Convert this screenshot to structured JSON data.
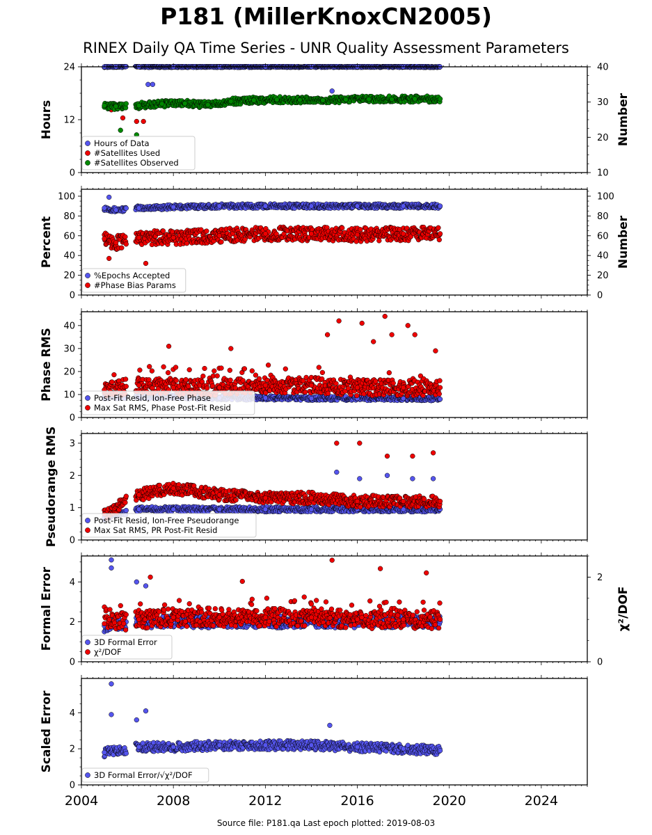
{
  "title": "P181 (MillerKnoxCN2005)",
  "subtitle": "RINEX Daily QA Time Series - UNR Quality Assessment Parameters",
  "footer": "Source file: P181.qa Last epoch plotted: 2019-08-03",
  "colors": {
    "blue": "#5555ee",
    "red": "#ee0000",
    "green": "#008800",
    "edge": "#000000"
  },
  "chart_data": [
    {
      "type": "scatter",
      "ylabel": "Hours",
      "ylabel_right": "Number",
      "xlim": [
        2004,
        2026
      ],
      "ylim": [
        0,
        24
      ],
      "ylim_right": [
        10,
        40
      ],
      "yticks": [
        0,
        12,
        24
      ],
      "yticks_right": [
        10,
        20,
        30,
        40
      ],
      "legend_position": "lower-left",
      "series": [
        {
          "name": "Hours of Data",
          "color": "blue",
          "axis": "left",
          "x": [
            2005.0,
            2005.5,
            2006.5,
            2008.0,
            2010.0,
            2012.0,
            2014.0,
            2016.0,
            2018.0,
            2019.6
          ],
          "y": [
            24,
            24,
            24,
            24,
            24,
            24,
            24,
            24,
            24,
            24
          ],
          "outliers": {
            "x": [
              2006.9,
              2007.1,
              2014.9
            ],
            "y": [
              20,
              20,
              18.5
            ]
          }
        },
        {
          "name": "#Satellites Used",
          "color": "red",
          "axis": "right",
          "x": [
            2005.3,
            2005.8,
            2006.4,
            2006.7,
            2009.5
          ],
          "y": [
            27.8,
            25.5,
            24.5,
            24.5,
            30
          ]
        },
        {
          "name": "#Satellites Observed",
          "color": "green",
          "axis": "right",
          "x": [
            2005.0,
            2005.5,
            2006.5,
            2007.5,
            2008.5,
            2009.5,
            2010.5,
            2011.5,
            2012.5,
            2013.5,
            2014.5,
            2015.5,
            2016.5,
            2017.5,
            2018.5,
            2019.6
          ],
          "y": [
            29,
            28.8,
            29,
            29.5,
            29.6,
            29.2,
            30.2,
            30.5,
            30.7,
            30.6,
            30.5,
            30.7,
            30.8,
            30.8,
            30.9,
            30.9
          ],
          "outliers": {
            "x": [
              2005.7,
              2006.4
            ],
            "y": [
              22,
              20.7
            ]
          }
        }
      ]
    },
    {
      "type": "scatter",
      "ylabel": "Percent",
      "ylabel_right": "Number",
      "xlim": [
        2004,
        2026
      ],
      "ylim": [
        0,
        107
      ],
      "ylim_right": [
        0,
        107
      ],
      "yticks": [
        0,
        20,
        40,
        60,
        80,
        100
      ],
      "yticks_right": [
        0,
        20,
        40,
        60,
        80,
        100
      ],
      "legend_position": "lower-left",
      "series": [
        {
          "name": "%Epochs Accepted",
          "color": "blue",
          "axis": "left",
          "x": [
            2005.0,
            2005.5,
            2006.5,
            2008.0,
            2010.0,
            2012.0,
            2014.0,
            2016.0,
            2018.0,
            2019.6
          ],
          "y": [
            88,
            86,
            88,
            89,
            90,
            90,
            90,
            90,
            90,
            90
          ],
          "outliers": {
            "x": [
              2005.2
            ],
            "y": [
              99
            ]
          }
        },
        {
          "name": "#Phase Bias Params",
          "color": "red",
          "axis": "right",
          "x": [
            2005.0,
            2005.5,
            2006.5,
            2008.0,
            2010.0,
            2012.0,
            2014.0,
            2016.0,
            2018.0,
            2019.6
          ],
          "y": [
            57,
            53,
            58,
            58,
            60,
            62,
            62,
            61,
            62,
            62
          ],
          "outliers": {
            "x": [
              2005.2,
              2006.8
            ],
            "y": [
              37,
              32
            ]
          }
        }
      ]
    },
    {
      "type": "scatter",
      "ylabel": "Phase RMS",
      "xlim": [
        2004,
        2026
      ],
      "ylim": [
        0,
        46
      ],
      "yticks": [
        0,
        10,
        20,
        30,
        40
      ],
      "legend_position": "lower-left",
      "series": [
        {
          "name": "Post-Fit Resid, Ion-Free Phase",
          "color": "blue",
          "x": [
            2005.0,
            2006.5,
            2008.0,
            2010.0,
            2012.0,
            2014.0,
            2016.0,
            2018.0,
            2019.6
          ],
          "y": [
            9,
            9,
            9,
            8.5,
            8.5,
            8.3,
            8.3,
            8.3,
            8.0
          ]
        },
        {
          "name": "Max Sat RMS, Phase Post-Fit Resid",
          "color": "red",
          "x": [
            2005.0,
            2006.5,
            2008.0,
            2010.0,
            2012.0,
            2014.0,
            2016.0,
            2018.0,
            2019.6
          ],
          "y": [
            12,
            14,
            13,
            13,
            14,
            14,
            13,
            13,
            13
          ],
          "outliers": {
            "x": [
              2015.2,
              2016.2,
              2017.2,
              2018.2,
              2018.5,
              2014.7,
              2016.7,
              2017.5,
              2019.4,
              2007.8,
              2010.5
            ],
            "y": [
              42,
              41,
              44,
              40,
              36,
              36,
              33,
              36,
              29,
              31,
              30
            ]
          }
        }
      ]
    },
    {
      "type": "scatter",
      "ylabel": "Pseudorange RMS",
      "xlim": [
        2004,
        2026
      ],
      "ylim": [
        0,
        3.3
      ],
      "yticks": [
        0,
        1,
        2,
        3
      ],
      "legend_position": "lower-left",
      "series": [
        {
          "name": "Post-Fit Resid, Ion-Free Pseudorange",
          "color": "blue",
          "x": [
            2005.0,
            2006.5,
            2008.0,
            2010.0,
            2012.0,
            2014.0,
            2016.0,
            2018.0,
            2019.6
          ],
          "y": [
            0.7,
            0.95,
            0.95,
            0.95,
            0.95,
            0.95,
            0.95,
            0.95,
            0.95
          ],
          "outliers": {
            "x": [
              2015.1,
              2016.1,
              2017.3,
              2018.4,
              2019.3
            ],
            "y": [
              2.1,
              1.9,
              2.0,
              1.9,
              1.9
            ]
          }
        },
        {
          "name": "Max Sat RMS, PR Post-Fit Resid",
          "color": "red",
          "x": [
            2005.0,
            2006.5,
            2008.0,
            2010.0,
            2012.0,
            2014.0,
            2016.0,
            2018.0,
            2019.6
          ],
          "y": [
            0.8,
            1.4,
            1.6,
            1.4,
            1.3,
            1.3,
            1.2,
            1.2,
            1.2
          ],
          "outliers": {
            "x": [
              2015.1,
              2016.1,
              2017.3,
              2018.4,
              2019.3
            ],
            "y": [
              3.0,
              3.0,
              2.6,
              2.6,
              2.7
            ]
          }
        }
      ]
    },
    {
      "type": "scatter",
      "ylabel": "Formal Error",
      "ylabel_right": "χ²/DOF",
      "xlim": [
        2004,
        2026
      ],
      "ylim": [
        0,
        5.3
      ],
      "ylim_right": [
        0,
        2.5
      ],
      "yticks": [
        0,
        2,
        4
      ],
      "yticks_right": [
        0,
        2
      ],
      "legend_position": "lower-left",
      "series": [
        {
          "name": "3D Formal Error",
          "color": "blue",
          "axis": "left",
          "x": [
            2005.0,
            2006.5,
            2008.0,
            2010.0,
            2012.0,
            2014.0,
            2016.0,
            2018.0,
            2019.6
          ],
          "y": [
            1.8,
            2.0,
            2.0,
            2.0,
            2.0,
            2.0,
            2.0,
            2.0,
            2.0
          ],
          "outliers": {
            "x": [
              2005.3,
              2005.3,
              2006.4,
              2006.8
            ],
            "y": [
              5.1,
              4.7,
              4.0,
              3.8
            ]
          }
        },
        {
          "name": "χ²/DOF",
          "color": "red",
          "axis": "right",
          "x": [
            2005.0,
            2006.5,
            2008.0,
            2010.0,
            2012.0,
            2014.0,
            2016.0,
            2018.0,
            2019.6
          ],
          "y": [
            0.9,
            1.0,
            1.05,
            1.05,
            1.05,
            1.05,
            1.0,
            1.0,
            1.0
          ],
          "outliers": {
            "x": [
              2014.9,
              2017.0,
              2007.0,
              2011.0,
              2019.0
            ],
            "y": [
              2.4,
              2.2,
              2.0,
              1.9,
              2.1
            ]
          }
        }
      ]
    },
    {
      "type": "scatter",
      "ylabel": "Scaled Error",
      "xlim": [
        2004,
        2026
      ],
      "ylim": [
        0,
        5.9
      ],
      "yticks": [
        0,
        2,
        4
      ],
      "xticks": [
        2004,
        2008,
        2012,
        2016,
        2020,
        2024
      ],
      "legend_position": "lower-left",
      "series": [
        {
          "name": "3D Formal Error/√χ²/DOF",
          "color": "blue",
          "x": [
            2005.0,
            2006.5,
            2008.0,
            2010.0,
            2012.0,
            2014.0,
            2016.0,
            2018.0,
            2019.6
          ],
          "y": [
            1.8,
            2.1,
            2.1,
            2.2,
            2.2,
            2.2,
            2.1,
            2.0,
            1.9
          ],
          "outliers": {
            "x": [
              2005.3,
              2005.3,
              2006.8,
              2006.4,
              2014.8
            ],
            "y": [
              5.6,
              3.9,
              4.1,
              3.6,
              3.3
            ]
          }
        }
      ]
    }
  ]
}
